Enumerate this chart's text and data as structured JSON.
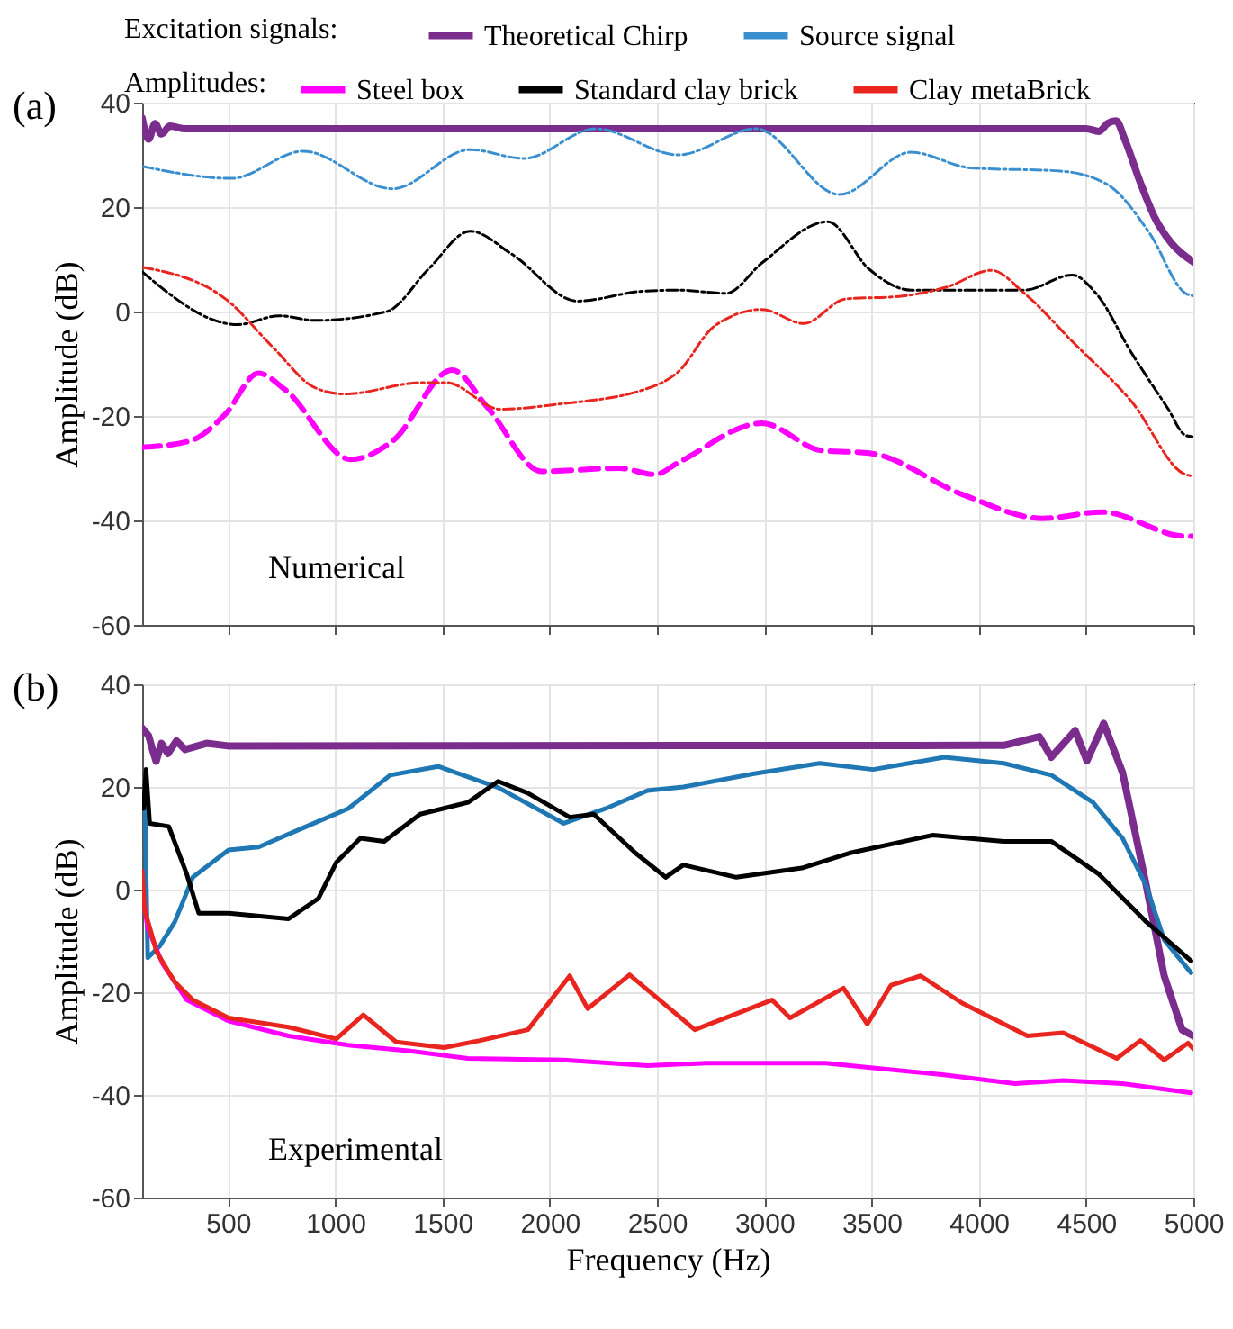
{
  "chart_data": [
    {
      "type": "line",
      "title": "(a)",
      "ylabel": "Amplitude (dB)",
      "xlim": [
        100,
        5000
      ],
      "xticks": [
        500,
        1000,
        1500,
        2000,
        2500,
        3000,
        3500,
        4000,
        4500,
        5000
      ],
      "ylim": [
        -60,
        40
      ],
      "yticks": [
        -60,
        -40,
        -20,
        0,
        20,
        40
      ],
      "grid": true,
      "tick_labels": "y",
      "legend": "top",
      "legend_title": "Excitation signals:",
      "annotations": [
        "Amplitudes:",
        "Numerical"
      ],
      "series": [
        {
          "name": "Theoretical Chirp",
          "color": "#7b2d8e",
          "line_style": "solid",
          "x": [
            100,
            130,
            160,
            190,
            230,
            300,
            4500,
            4560,
            4600,
            4640,
            4680,
            4750,
            4820,
            4900,
            5000
          ],
          "values": [
            37,
            33,
            36,
            34,
            35.5,
            35,
            35,
            34.5,
            36,
            36.5,
            33,
            25,
            18,
            13,
            9.5
          ]
        },
        {
          "name": "Source signal",
          "color": "#3a8fd0",
          "line_style": "dotted",
          "x": [
            100,
            517,
            850,
            1267,
            1629,
            1879,
            2213,
            2600,
            2961,
            3350,
            3684,
            3962,
            4379,
            4600,
            4796,
            4963,
            5000
          ],
          "values": [
            27.8,
            25.5,
            30.7,
            23.5,
            31,
            29.3,
            35,
            30,
            35,
            22.4,
            30.5,
            27.5,
            26.9,
            24.3,
            15,
            3.5,
            3
          ]
        },
        {
          "name": "Steel box",
          "color": "#ff00ff",
          "line_style": "dashed",
          "x": [
            100,
            322,
            489,
            642,
            767,
            1073,
            1267,
            1545,
            1712,
            1962,
            2324,
            2490,
            2600,
            2989,
            3267,
            3489,
            3934,
            4296,
            4574,
            4963,
            5000
          ],
          "values": [
            -26,
            -24.8,
            -19.6,
            -11.8,
            -15,
            -28.3,
            -24.8,
            -11.2,
            -18.5,
            -30.6,
            -30,
            -31.2,
            -28.9,
            -21.4,
            -26.6,
            -27.1,
            -35.2,
            -39.6,
            -38.4,
            -43,
            -43
          ]
        },
        {
          "name": "Standard clay brick",
          "color": "#000000",
          "line_style": "dotted",
          "x": [
            100,
            545,
            739,
            906,
            1240,
            1434,
            1629,
            1823,
            2129,
            2435,
            2600,
            2822,
            2989,
            3295,
            3489,
            3684,
            4212,
            4435,
            4546,
            4713,
            4880,
            4963,
            5000
          ],
          "values": [
            7.6,
            -2.5,
            -0.8,
            -1.7,
            0,
            8.1,
            15.4,
            11,
            2,
            3.9,
            4.1,
            3.5,
            9.3,
            17.2,
            8.1,
            4.1,
            4.1,
            7,
            3.5,
            -8,
            -18.5,
            -23.7,
            -24
          ]
        },
        {
          "name": "Clay metaBrick",
          "color": "#e8251f",
          "line_style": "dotted",
          "x": [
            100,
            489,
            711,
            906,
            1045,
            1406,
            1518,
            1768,
            2046,
            2435,
            2600,
            2767,
            2989,
            3184,
            3378,
            3628,
            3851,
            4059,
            4212,
            4435,
            4713,
            4963,
            5000
          ],
          "values": [
            8.5,
            2.4,
            -6.9,
            -14.6,
            -15.8,
            -13.6,
            -13.6,
            -18.7,
            -17.7,
            -15,
            -11.5,
            -2.8,
            0.4,
            -2.3,
            2.4,
            2.9,
            4.7,
            7.9,
            3.5,
            -5.7,
            -17.3,
            -31.2,
            -31.5
          ]
        }
      ]
    },
    {
      "type": "line",
      "title": "(b)",
      "xlabel": "Frequency (Hz)",
      "ylabel": "Amplitude (dB)",
      "xlim": [
        100,
        5000
      ],
      "xticks": [
        500,
        1000,
        1500,
        2000,
        2500,
        3000,
        3500,
        4000,
        4500,
        5000
      ],
      "ylim": [
        -60,
        40
      ],
      "yticks": [
        -60,
        -40,
        -20,
        0,
        20,
        40
      ],
      "grid": true,
      "annotations": [
        "Experimental"
      ],
      "series": [
        {
          "color": "#7b2d8e",
          "line_style": "solid",
          "x": [
            100,
            130,
            150,
            165,
            190,
            220,
            260,
            300,
            400,
            500,
            4000,
            4116,
            4282,
            4338,
            4449,
            4504,
            4582,
            4670,
            4781,
            4864,
            4947,
            5000
          ],
          "values": [
            31.5,
            30,
            27,
            25,
            28.5,
            26.5,
            29,
            27.3,
            28.5,
            28,
            28.1,
            28.1,
            29.8,
            25.8,
            31,
            25.1,
            32.4,
            22.8,
            0.7,
            -16.8,
            -27.3,
            -28.5
          ]
        },
        {
          "color": "#1f77b4",
          "line_style": "solid",
          "x": [
            112,
            126,
            182,
            252,
            336,
            503,
            643,
            866,
            1061,
            1256,
            1480,
            1759,
            2065,
            2261,
            2456,
            2623,
            2953,
            3258,
            3507,
            3839,
            4116,
            4338,
            4532,
            4670,
            4781,
            4864,
            4989
          ],
          "values": [
            18.2,
            -13.3,
            -11,
            -6.3,
            2.4,
            7.7,
            8.3,
            12.3,
            15.8,
            22.3,
            24,
            19.9,
            12.9,
            15.8,
            19.3,
            20,
            22.6,
            24.6,
            23.4,
            25.8,
            24.6,
            22.3,
            17,
            10,
            0.7,
            -9.8,
            -16.2
          ]
        },
        {
          "color": "#ff00ff",
          "line_style": "solid",
          "x": [
            100,
            126,
            196,
            308,
            503,
            782,
            1061,
            1340,
            1619,
            2065,
            2456,
            2731,
            3285,
            3839,
            4168,
            4393,
            4670,
            4989
          ],
          "values": [
            -0.5,
            -7.5,
            -14.5,
            -21.5,
            -25.6,
            -28.5,
            -30.3,
            -31.4,
            -32.9,
            -33.2,
            -34.3,
            -33.8,
            -33.8,
            -36.1,
            -37.8,
            -37.2,
            -37.8,
            -39.6
          ]
        },
        {
          "color": "#000000",
          "line_style": "solid",
          "x": [
            107,
            118,
            135,
            224,
            308,
            364,
            503,
            782,
            922,
            1005,
            1117,
            1228,
            1396,
            1619,
            1759,
            1898,
            2093,
            2205,
            2400,
            2540,
            2623,
            2870,
            3175,
            3396,
            3784,
            4116,
            4338,
            4560,
            4781,
            4989
          ],
          "values": [
            15.8,
            23.4,
            12.9,
            12.3,
            3,
            -4.6,
            -4.6,
            -5.7,
            -1.7,
            5.3,
            10,
            9.4,
            14.7,
            17,
            21.1,
            18.8,
            14.1,
            14.7,
            7.1,
            2.4,
            4.8,
            2.4,
            4.2,
            7.1,
            10.6,
            9.4,
            9.4,
            3,
            -6.3,
            -13.9
          ]
        },
        {
          "color": "#e8251f",
          "line_style": "solid",
          "x": [
            100,
            112,
            168,
            252,
            336,
            503,
            782,
            1005,
            1131,
            1284,
            1507,
            1675,
            1898,
            2093,
            2177,
            2372,
            2512,
            2676,
            3036,
            3120,
            3369,
            3480,
            3591,
            3729,
            3922,
            4227,
            4393,
            4643,
            4754,
            4864,
            4975,
            5000
          ],
          "values": [
            3.6,
            -4,
            -12.2,
            -18,
            -21.5,
            -25,
            -26.8,
            -29.1,
            -24.4,
            -29.7,
            -30.8,
            -29.4,
            -27.3,
            -16.8,
            -23.2,
            -16.6,
            -21.5,
            -27.3,
            -21.5,
            -25,
            -19.2,
            -26.2,
            -18.6,
            -16.8,
            -22.1,
            -28.5,
            -27.9,
            -32.9,
            -29.4,
            -33.2,
            -29.9,
            -31
          ]
        }
      ]
    }
  ]
}
